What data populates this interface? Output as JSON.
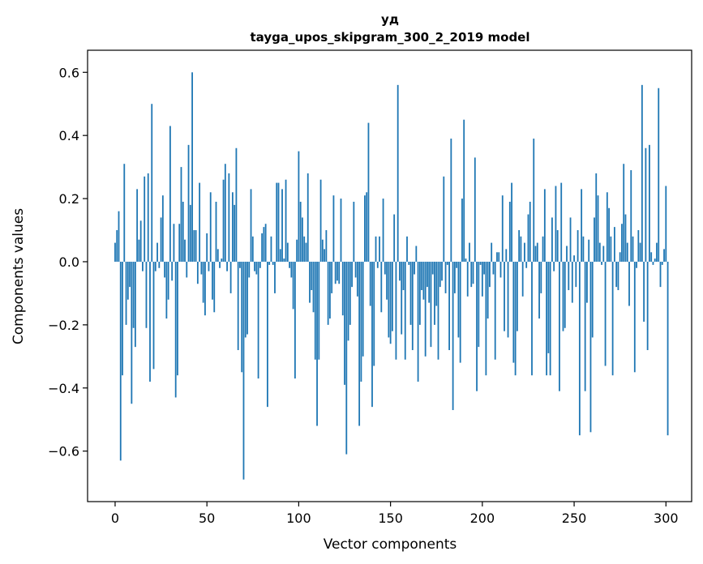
{
  "chart_data": {
    "type": "bar",
    "title": "уд",
    "subtitle": "tayga_upos_skipgram_300_2_2019 model",
    "xlabel": "Vector components",
    "ylabel": "Components values",
    "xlim": [
      -15,
      314
    ],
    "ylim": [
      -0.76,
      0.67
    ],
    "xticks": [
      0,
      50,
      100,
      150,
      200,
      250,
      300
    ],
    "yticks": [
      -0.6,
      -0.4,
      -0.2,
      0.0,
      0.2,
      0.4,
      0.6
    ],
    "xtick_labels": [
      "0",
      "50",
      "100",
      "150",
      "200",
      "250",
      "300"
    ],
    "ytick_labels": [
      "−0.6",
      "−0.4",
      "−0.2",
      "0.0",
      "0.2",
      "0.4",
      "0.6"
    ],
    "bar_color": "#1f77b4",
    "grid": false,
    "legend": "none",
    "values": [
      0.06,
      0.1,
      0.16,
      -0.63,
      -0.36,
      0.31,
      -0.2,
      -0.12,
      -0.08,
      -0.45,
      -0.21,
      -0.27,
      0.23,
      0.07,
      0.13,
      -0.03,
      0.27,
      -0.21,
      0.28,
      -0.38,
      0.5,
      -0.34,
      -0.03,
      0.06,
      -0.02,
      0.14,
      0.21,
      -0.05,
      -0.18,
      -0.12,
      0.43,
      -0.06,
      0.12,
      -0.43,
      -0.36,
      0.12,
      0.3,
      0.19,
      0.07,
      -0.05,
      0.37,
      0.18,
      0.6,
      0.1,
      0.1,
      -0.07,
      0.25,
      -0.04,
      -0.13,
      -0.17,
      0.09,
      -0.03,
      0.22,
      -0.12,
      -0.16,
      0.19,
      0.04,
      -0.02,
      0.01,
      0.26,
      0.31,
      -0.03,
      0.28,
      -0.1,
      0.22,
      0.18,
      0.36,
      -0.28,
      -0.02,
      -0.35,
      -0.69,
      -0.24,
      -0.23,
      -0.05,
      0.23,
      0.08,
      -0.03,
      -0.04,
      -0.37,
      -0.02,
      0.09,
      0.11,
      0.12,
      -0.46,
      -0.01,
      0.08,
      -0.01,
      -0.1,
      0.25,
      0.25,
      0.04,
      0.23,
      0.01,
      0.26,
      0.06,
      -0.02,
      -0.05,
      -0.15,
      -0.37,
      0.07,
      0.35,
      0.19,
      0.14,
      0.08,
      0.06,
      0.28,
      -0.13,
      -0.09,
      -0.16,
      -0.31,
      -0.52,
      -0.31,
      0.26,
      0.07,
      0.04,
      0.1,
      -0.2,
      -0.18,
      -0.1,
      0.21,
      -0.07,
      -0.06,
      -0.07,
      0.2,
      -0.17,
      -0.39,
      -0.61,
      -0.25,
      -0.2,
      -0.08,
      0.19,
      -0.05,
      -0.11,
      -0.52,
      -0.38,
      -0.3,
      0.21,
      0.22,
      0.44,
      -0.14,
      -0.46,
      -0.33,
      0.08,
      -0.02,
      0.08,
      -0.16,
      0.2,
      -0.04,
      -0.12,
      -0.24,
      -0.26,
      -0.22,
      0.15,
      -0.31,
      0.56,
      -0.06,
      -0.23,
      -0.09,
      -0.31,
      0.08,
      -0.01,
      -0.2,
      -0.28,
      -0.04,
      0.05,
      -0.38,
      -0.2,
      -0.09,
      -0.12,
      -0.3,
      -0.08,
      -0.13,
      -0.27,
      -0.04,
      -0.2,
      -0.14,
      -0.31,
      -0.08,
      -0.06,
      0.27,
      -0.1,
      -0.01,
      -0.28,
      0.39,
      -0.47,
      -0.1,
      -0.02,
      -0.24,
      -0.32,
      0.2,
      0.45,
      0.01,
      -0.11,
      0.06,
      -0.08,
      -0.07,
      0.33,
      -0.41,
      -0.27,
      -0.01,
      -0.11,
      -0.04,
      -0.36,
      -0.18,
      -0.08,
      0.06,
      -0.04,
      -0.31,
      0.03,
      0.03,
      -0.05,
      0.21,
      -0.22,
      0.04,
      -0.24,
      0.19,
      0.25,
      -0.32,
      -0.36,
      -0.22,
      0.1,
      0.08,
      -0.11,
      0.06,
      -0.02,
      0.15,
      0.19,
      -0.36,
      0.39,
      0.05,
      0.06,
      -0.18,
      -0.1,
      0.08,
      0.23,
      -0.36,
      -0.29,
      -0.36,
      0.14,
      -0.03,
      0.24,
      0.1,
      -0.41,
      0.25,
      -0.22,
      -0.21,
      0.05,
      -0.09,
      0.14,
      -0.13,
      0.02,
      -0.08,
      0.1,
      -0.55,
      0.23,
      0.08,
      -0.41,
      -0.13,
      0.07,
      -0.54,
      -0.24,
      0.14,
      0.28,
      0.21,
      0.06,
      -0.01,
      0.05,
      -0.33,
      0.22,
      0.17,
      0.08,
      -0.36,
      0.11,
      -0.08,
      -0.09,
      0.03,
      0.12,
      0.31,
      0.15,
      0.06,
      -0.14,
      0.29,
      0.08,
      -0.35,
      -0.02,
      0.1,
      0.06,
      0.56,
      -0.19,
      0.36,
      -0.28,
      0.37,
      0.03,
      -0.01,
      0.01,
      0.06,
      0.55,
      -0.08,
      -0.01,
      0.04,
      0.24,
      -0.55
    ]
  }
}
